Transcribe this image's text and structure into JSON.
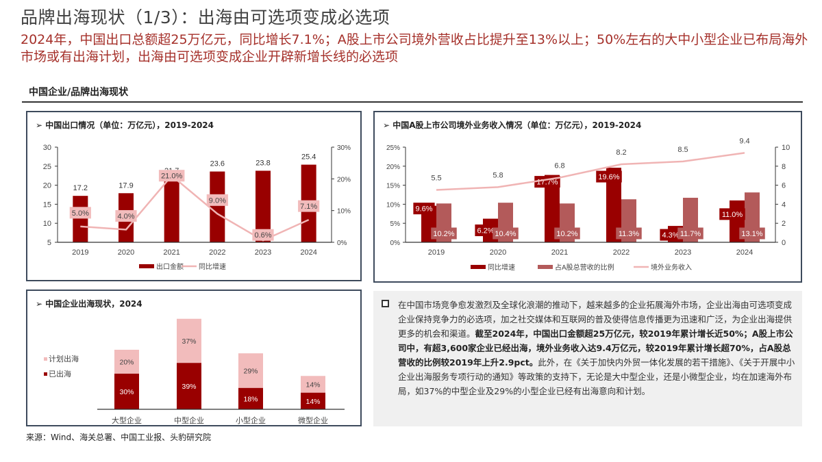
{
  "header": {
    "title": "品牌出海现状（1/3）：出海由可选项变成必选项",
    "subtitle": "2024年，中国出口总额超25万亿元，同比增长7.1%；A股上市公司境外营收占比提升至13%以上；50%左右的大中小型企业已布局海外市场或有出海计划，出海由可选项变成企业开辟新增长线的必选项"
  },
  "section": {
    "title": "中国企业/品牌出海现状"
  },
  "colors": {
    "dark_red": "#990000",
    "muted_red": "#b35a5a",
    "pink_line": "#f0b4b4",
    "pink_bar": "#f2bcbc",
    "subtitle_red": "#a5302a",
    "panel_border": "#3d4a5c"
  },
  "panels": {
    "export": {
      "title": "➢ 中国出口情况（单位：万亿元），2019-2024"
    },
    "overseas": {
      "title": "➢ 中国A股上市公司境外业务收入情况（单位：万亿元），2019-2024"
    },
    "enterprise": {
      "title": "➢ 中国企业出海现状，2024"
    }
  },
  "text_box": {
    "p1": "在中国市场竞争愈发激烈及全球化浪潮的推动下，越来越多的企业拓展海外市场，企业出海由可选项变成企业保持竞争力的必选项，加之社交媒体和互联网的普及使得信息传播更为迅速和广泛，为企业出海提供更多的机会和渠道。",
    "p2_bold": "截至2024年，中国出口金额超25万亿元，较2019年累计增长近50%；A股上市公司中，有超3,600家企业已经出海，境外业务收入达9.4万亿元，较2019年累计增长超70%，占A股总营收的比例较2019年上升2.9pct。",
    "p3": "此外，在《关于加快内外贸一体化发展的若干措施》、《关于开展中小企业出海服务专项行动的通知》等政策的支持下，无论是大中型企业，还是小微型企业，均在加速海外布局，如37%的中型企业及29%的小型企业已经有出海意向和计划。"
  },
  "source": "来源：Wind、海关总署、中国工业报、头豹研究院",
  "chart_data": [
    {
      "type": "bar",
      "title": "中国出口情况（单位：万亿元），2019-2024",
      "categories": [
        "2019",
        "2020",
        "2021",
        "2022",
        "2023",
        "2024"
      ],
      "series": [
        {
          "name": "出口金额",
          "type": "bar",
          "axis": "left",
          "values": [
            17.2,
            17.9,
            21.7,
            23.6,
            23.8,
            25.4
          ],
          "labels": [
            "17.2",
            "17.9",
            "21.7",
            "23.6",
            "23.8",
            "25.4"
          ]
        },
        {
          "name": "同比增速",
          "type": "line",
          "axis": "right",
          "values": [
            5.0,
            4.0,
            21.0,
            9.0,
            0.6,
            7.1
          ],
          "labels": [
            "5.0%",
            "4.0%",
            "21.0%",
            "9.0%",
            "0.6%",
            "7.1%"
          ]
        }
      ],
      "y_left": {
        "ticks": [
          "30",
          "25",
          "20",
          "15",
          "10",
          "5"
        ],
        "range": [
          5,
          30
        ]
      },
      "y_right": {
        "ticks": [
          "30%",
          "20%",
          "10%",
          "0%"
        ],
        "range": [
          0,
          30
        ]
      },
      "legend": [
        "出口金额",
        "同比增速"
      ],
      "legend_position": "bottom",
      "grid": false
    },
    {
      "type": "bar",
      "title": "中国A股上市公司境外业务收入情况（单位：万亿元），2019-2024",
      "categories": [
        "2019",
        "2020",
        "2021",
        "2022",
        "2023",
        "2024"
      ],
      "series": [
        {
          "name": "同比增速",
          "type": "bar",
          "axis": "left",
          "values": [
            9.6,
            6.2,
            17.7,
            19.6,
            4.3,
            11.0
          ],
          "labels": [
            "9.6%",
            "6.2%",
            "17.7%",
            "19.6%",
            "4.3%",
            "11.0%"
          ]
        },
        {
          "name": "占A股总营收的比例",
          "type": "bar",
          "axis": "left",
          "values": [
            10.2,
            10.4,
            10.2,
            11.3,
            11.7,
            13.1
          ],
          "labels": [
            "10.2%",
            "10.4%",
            "10.2%",
            "11.3%",
            "11.7%",
            "13.1%"
          ]
        },
        {
          "name": "境外业务收入",
          "type": "line",
          "axis": "right",
          "values": [
            5.5,
            5.8,
            6.8,
            8.2,
            8.5,
            9.4
          ],
          "labels": [
            "5.5",
            "5.8",
            "6.8",
            "8.2",
            "8.5",
            "9.4"
          ]
        }
      ],
      "y_left": {
        "ticks": [
          "25%",
          "20%",
          "15%",
          "10%",
          "5%",
          "0%"
        ],
        "range": [
          0,
          25
        ]
      },
      "y_right": {
        "ticks": [
          "10",
          "8",
          "6",
          "4",
          "2",
          "0"
        ],
        "range": [
          0,
          10
        ]
      },
      "legend": [
        "同比增速",
        "占A股总营收的比例",
        "境外业务收入"
      ],
      "legend_position": "bottom",
      "grid": false
    },
    {
      "type": "bar",
      "stacked": true,
      "title": "中国企业出海现状，2024",
      "categories": [
        "大型企业",
        "中型企业",
        "小型企业",
        "微型企业"
      ],
      "series": [
        {
          "name": "已出海",
          "values": [
            30,
            39,
            18,
            14
          ],
          "labels": [
            "30%",
            "39%",
            "18%",
            "14%"
          ]
        },
        {
          "name": "计划出海",
          "values": [
            20,
            37,
            29,
            14
          ],
          "labels": [
            "20%",
            "37%",
            "29%",
            "14%"
          ]
        }
      ],
      "legend": [
        "计划出海",
        "已出海"
      ],
      "legend_position": "left",
      "grid": false
    }
  ]
}
